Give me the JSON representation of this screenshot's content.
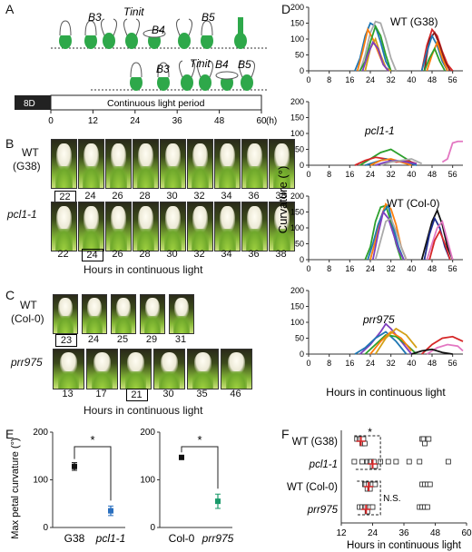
{
  "panels": {
    "A": {
      "letter": "A",
      "stage_labels_top": [
        "B3",
        "Tinit",
        "B4",
        "B5"
      ],
      "stage_labels_bottom": [
        "B3",
        "Tinit",
        "B4",
        "B5"
      ],
      "bar_left_label": "8D",
      "bar_label": "Continuous light period",
      "axis_ticks": [
        "0",
        "12",
        "24",
        "36",
        "48",
        "60"
      ],
      "axis_unit": "(h)"
    },
    "B": {
      "letter": "B",
      "row1_label_a": "WT",
      "row1_label_b": "(G38)",
      "row2_label": "pcl1-1",
      "row1_hours": [
        "22",
        "24",
        "26",
        "28",
        "30",
        "32",
        "34",
        "36",
        "38"
      ],
      "row2_hours": [
        "22",
        "24",
        "26",
        "28",
        "30",
        "32",
        "34",
        "36",
        "38"
      ],
      "row1_boxed": "22",
      "row2_boxed": "24",
      "xlabel": "Hours in continuous light"
    },
    "C": {
      "letter": "C",
      "row1_label_a": "WT",
      "row1_label_b": "(Col-0)",
      "row2_label": "prr975",
      "row1_hours": [
        "23",
        "24",
        "25",
        "29",
        "31"
      ],
      "row2_hours": [
        "13",
        "17",
        "21",
        "30",
        "35",
        "46"
      ],
      "row1_boxed": "23",
      "row2_boxed": "21",
      "xlabel": "Hours in continuous light"
    },
    "D": {
      "letter": "D"
    },
    "E": {
      "letter": "E"
    },
    "F": {
      "letter": "F"
    }
  },
  "chart_data": [
    {
      "id": "D",
      "type": "line",
      "ylabel": "Curvature (°)",
      "xlabel": "Hours in continuous light",
      "xticks": [
        0,
        8,
        16,
        24,
        32,
        40,
        48,
        56
      ],
      "yticks": [
        0,
        50,
        100,
        150,
        200
      ],
      "xlim": [
        0,
        60
      ],
      "ylim": [
        0,
        200
      ],
      "subplots": [
        {
          "title": "WT (G38)",
          "series": [
            {
              "color": "#1f77b4",
              "x": [
                18,
                20,
                22,
                24,
                26,
                28,
                30,
                32
              ],
              "y": [
                0,
                40,
                110,
                150,
                140,
                90,
                30,
                0
              ]
            },
            {
              "color": "#aaaaaa",
              "x": [
                20,
                22,
                24,
                26,
                28,
                30,
                32,
                34
              ],
              "y": [
                0,
                50,
                120,
                155,
                150,
                100,
                40,
                0
              ]
            },
            {
              "color": "#ff7f0e",
              "x": [
                19,
                21,
                23,
                25,
                27,
                29,
                31
              ],
              "y": [
                0,
                60,
                130,
                100,
                60,
                20,
                0
              ]
            },
            {
              "color": "#2ca02c",
              "x": [
                20,
                22,
                24,
                26,
                28,
                30,
                32
              ],
              "y": [
                0,
                30,
                90,
                140,
                110,
                50,
                0
              ]
            },
            {
              "color": "#d4a017",
              "x": [
                22,
                24,
                26,
                28,
                30,
                32
              ],
              "y": [
                0,
                70,
                100,
                50,
                10,
                0
              ]
            },
            {
              "color": "#7f3fbf",
              "x": [
                21,
                23,
                25,
                27,
                29,
                31
              ],
              "y": [
                0,
                50,
                90,
                70,
                20,
                0
              ]
            },
            {
              "color": "#d62728",
              "x": [
                44,
                46,
                48,
                50,
                52,
                54,
                56
              ],
              "y": [
                0,
                80,
                130,
                110,
                60,
                20,
                0
              ]
            },
            {
              "color": "#8b1a1a",
              "x": [
                45,
                47,
                49,
                51,
                53,
                55
              ],
              "y": [
                0,
                100,
                120,
                80,
                30,
                0
              ]
            },
            {
              "color": "#1f77b4",
              "x": [
                44,
                46,
                48,
                50,
                52,
                54
              ],
              "y": [
                0,
                60,
                110,
                80,
                30,
                0
              ]
            },
            {
              "color": "#ff7f0e",
              "x": [
                46,
                48,
                50,
                52,
                54
              ],
              "y": [
                0,
                50,
                90,
                40,
                0
              ]
            },
            {
              "color": "#2ca02c",
              "x": [
                45,
                47,
                49,
                51,
                53
              ],
              "y": [
                0,
                40,
                70,
                30,
                0
              ]
            }
          ]
        },
        {
          "title": "pcl1-1",
          "series": [
            {
              "color": "#2ca02c",
              "x": [
                20,
                24,
                28,
                32,
                36,
                40
              ],
              "y": [
                0,
                20,
                40,
                50,
                30,
                10
              ]
            },
            {
              "color": "#d62728",
              "x": [
                18,
                22,
                26,
                30,
                34,
                38,
                42
              ],
              "y": [
                0,
                15,
                25,
                20,
                10,
                15,
                5
              ]
            },
            {
              "color": "#1f77b4",
              "x": [
                22,
                26,
                30,
                34,
                38,
                42
              ],
              "y": [
                0,
                10,
                20,
                15,
                10,
                0
              ]
            },
            {
              "color": "#ff7f0e",
              "x": [
                24,
                28,
                32,
                36,
                40
              ],
              "y": [
                0,
                15,
                20,
                10,
                0
              ]
            },
            {
              "color": "#7f3fbf",
              "x": [
                26,
                30,
                34,
                38,
                42
              ],
              "y": [
                0,
                10,
                15,
                10,
                5
              ]
            },
            {
              "color": "#aaaaaa",
              "x": [
                28,
                32,
                36,
                40,
                44
              ],
              "y": [
                0,
                10,
                15,
                20,
                5
              ]
            },
            {
              "color": "#e377c2",
              "x": [
                52,
                54,
                56,
                58,
                60
              ],
              "y": [
                10,
                20,
                70,
                75,
                75
              ]
            }
          ]
        },
        {
          "title": "WT (Col-0)",
          "series": [
            {
              "color": "#2ca02c",
              "x": [
                22,
                24,
                26,
                28,
                30,
                32,
                34,
                36
              ],
              "y": [
                0,
                40,
                120,
                165,
                170,
                120,
                50,
                0
              ]
            },
            {
              "color": "#ff7f0e",
              "x": [
                24,
                26,
                28,
                30,
                32,
                34,
                36,
                38
              ],
              "y": [
                0,
                60,
                130,
                175,
                160,
                110,
                40,
                0
              ]
            },
            {
              "color": "#1f77b4",
              "x": [
                23,
                25,
                27,
                29,
                31,
                33,
                35,
                37
              ],
              "y": [
                0,
                50,
                110,
                150,
                170,
                100,
                40,
                0
              ]
            },
            {
              "color": "#7f3fbf",
              "x": [
                25,
                27,
                29,
                31,
                33,
                35,
                37
              ],
              "y": [
                0,
                80,
                150,
                130,
                80,
                30,
                0
              ]
            },
            {
              "color": "#aaaaaa",
              "x": [
                26,
                28,
                30,
                32,
                34,
                36,
                38
              ],
              "y": [
                0,
                60,
                120,
                130,
                90,
                40,
                0
              ]
            },
            {
              "color": "#111111",
              "x": [
                44,
                46,
                48,
                50,
                52,
                54,
                56
              ],
              "y": [
                0,
                60,
                120,
                155,
                110,
                40,
                0
              ]
            },
            {
              "color": "#1f2f8f",
              "x": [
                45,
                47,
                49,
                51,
                53,
                55
              ],
              "y": [
                0,
                80,
                130,
                100,
                40,
                0
              ]
            },
            {
              "color": "#e377c2",
              "x": [
                46,
                48,
                50,
                52,
                54,
                56
              ],
              "y": [
                0,
                50,
                100,
                120,
                60,
                0
              ]
            },
            {
              "color": "#d62728",
              "x": [
                47,
                49,
                51,
                53,
                55
              ],
              "y": [
                0,
                60,
                90,
                50,
                0
              ]
            }
          ]
        },
        {
          "title": "prr975",
          "series": [
            {
              "color": "#7f3fbf",
              "x": [
                20,
                24,
                28,
                30,
                32,
                36,
                40
              ],
              "y": [
                0,
                30,
                70,
                95,
                80,
                40,
                0
              ]
            },
            {
              "color": "#1f77b4",
              "x": [
                18,
                22,
                26,
                30,
                34,
                38
              ],
              "y": [
                0,
                20,
                50,
                70,
                40,
                0
              ]
            },
            {
              "color": "#2ca02c",
              "x": [
                22,
                26,
                30,
                34,
                38,
                42
              ],
              "y": [
                0,
                30,
                60,
                55,
                30,
                0
              ]
            },
            {
              "color": "#ff7f0e",
              "x": [
                24,
                28,
                32,
                36,
                40
              ],
              "y": [
                0,
                40,
                70,
                50,
                10
              ]
            },
            {
              "color": "#d4a017",
              "x": [
                26,
                30,
                34,
                38,
                42
              ],
              "y": [
                0,
                50,
                80,
                60,
                20
              ]
            },
            {
              "color": "#d62728",
              "x": [
                44,
                48,
                52,
                56,
                60
              ],
              "y": [
                0,
                30,
                50,
                55,
                40
              ]
            },
            {
              "color": "#e377c2",
              "x": [
                46,
                50,
                54,
                58,
                60
              ],
              "y": [
                0,
                20,
                30,
                25,
                10
              ]
            },
            {
              "color": "#111111",
              "x": [
                40,
                44,
                48,
                52,
                56
              ],
              "y": [
                0,
                10,
                15,
                5,
                0
              ]
            }
          ]
        }
      ]
    },
    {
      "id": "E",
      "type": "scatter",
      "ylabel": "Max petal curvature (°)",
      "yticks": [
        0,
        100,
        200
      ],
      "ylim": [
        0,
        200
      ],
      "subplots": [
        {
          "categories": [
            "G38",
            "pcl1-1"
          ],
          "values": [
            128,
            35
          ],
          "errors": [
            8,
            10
          ],
          "colors": [
            "#111111",
            "#2a6fbf"
          ],
          "significance": "*"
        },
        {
          "categories": [
            "Col-0",
            "prr975"
          ],
          "values": [
            147,
            55
          ],
          "errors": [
            3,
            15
          ],
          "colors": [
            "#111111",
            "#1a9a6a"
          ],
          "significance": "*"
        }
      ]
    },
    {
      "id": "F",
      "type": "scatter",
      "xlabel": "Hours in continuous light",
      "xticks": [
        12,
        24,
        36,
        48,
        60
      ],
      "xlim": [
        12,
        60
      ],
      "categories": [
        "WT (G38)",
        "pcl1-1",
        "WT (Col-0)",
        "prr975"
      ],
      "points": [
        [
          18,
          19,
          19.5,
          20,
          20.5,
          21,
          43,
          43.5,
          44,
          45,
          45.5
        ],
        [
          17,
          20,
          22,
          23,
          23.5,
          24,
          24.5,
          25,
          27,
          30,
          33,
          38,
          42,
          53
        ],
        [
          21,
          21.5,
          22,
          22.5,
          23,
          24,
          25,
          43,
          44,
          45,
          46
        ],
        [
          19,
          20,
          21,
          21.5,
          22,
          23,
          24,
          42,
          43,
          44,
          45
        ]
      ],
      "means": [
        19.5,
        24,
        22.5,
        21.5
      ],
      "annotations": [
        "*",
        "N.S."
      ]
    }
  ]
}
